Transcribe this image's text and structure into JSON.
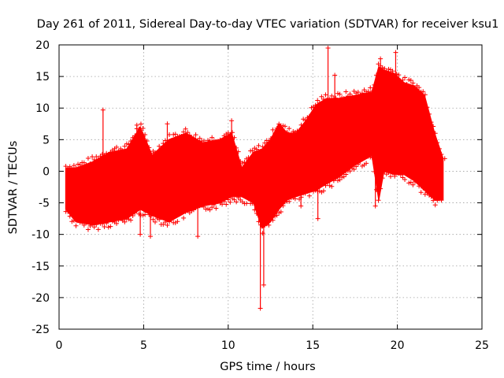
{
  "chart_data": {
    "type": "scatter",
    "title": "Day 261 of 2011, Sidereal Day-to-day VTEC variation (SDTVAR) for receiver ksu1",
    "xlabel": "GPS time / hours",
    "ylabel": "SDTVAR / TECUs",
    "xlim": [
      0,
      25
    ],
    "ylim": [
      -25,
      20
    ],
    "xticks": [
      0,
      5,
      10,
      15,
      20,
      25
    ],
    "yticks": [
      -25,
      -20,
      -15,
      -10,
      -5,
      0,
      5,
      10,
      15,
      20
    ],
    "grid": true,
    "marker": "+",
    "series_color": "#ff0000",
    "series": [
      {
        "name": "ksu1",
        "band_x": [
          0.4,
          1.0,
          2.0,
          3.0,
          4.0,
          4.8,
          5.5,
          6.5,
          7.5,
          8.5,
          9.5,
          10.2,
          10.8,
          11.5,
          12.0,
          12.5,
          13.0,
          13.5,
          14.0,
          14.6,
          15.2,
          15.8,
          16.5,
          17.5,
          18.5,
          18.9,
          19.2,
          19.8,
          20.4,
          21.0,
          21.6,
          22.2,
          22.7
        ],
        "band_upper": [
          0.5,
          0.5,
          1.5,
          3.0,
          3.5,
          7.0,
          2.5,
          5.0,
          6.0,
          4.5,
          5.0,
          6.0,
          0.5,
          3.0,
          3.5,
          5.0,
          7.5,
          6.0,
          6.0,
          8.0,
          10.5,
          11.5,
          11.5,
          12.0,
          12.5,
          16.5,
          16.0,
          15.5,
          14.0,
          13.5,
          12.0,
          6.0,
          2.0
        ],
        "band_lower": [
          -6.0,
          -8.0,
          -8.5,
          -8.0,
          -7.5,
          -6.0,
          -7.0,
          -8.0,
          -6.5,
          -5.5,
          -5.0,
          -4.0,
          -4.0,
          -5.0,
          -9.0,
          -8.0,
          -6.0,
          -4.5,
          -4.0,
          -3.5,
          -3.0,
          -2.0,
          -1.0,
          1.0,
          2.5,
          -4.5,
          0.0,
          -0.5,
          -0.5,
          -1.5,
          -3.0,
          -4.5,
          -4.5
        ],
        "spikes": [
          {
            "x": 2.6,
            "y": 9.7
          },
          {
            "x": 4.6,
            "y": 7.3
          },
          {
            "x": 6.4,
            "y": 7.5
          },
          {
            "x": 4.8,
            "y": -10.0
          },
          {
            "x": 5.4,
            "y": -10.3
          },
          {
            "x": 8.2,
            "y": -10.3
          },
          {
            "x": 10.2,
            "y": 8.0
          },
          {
            "x": 11.9,
            "y": -21.7
          },
          {
            "x": 12.1,
            "y": -18.0
          },
          {
            "x": 14.3,
            "y": -5.5
          },
          {
            "x": 15.3,
            "y": -7.5
          },
          {
            "x": 15.9,
            "y": 19.5
          },
          {
            "x": 16.3,
            "y": 15.2
          },
          {
            "x": 18.7,
            "y": -5.5
          },
          {
            "x": 19.0,
            "y": 17.8
          },
          {
            "x": 19.9,
            "y": 18.8
          },
          {
            "x": 22.8,
            "y": 2.0
          }
        ]
      }
    ]
  }
}
